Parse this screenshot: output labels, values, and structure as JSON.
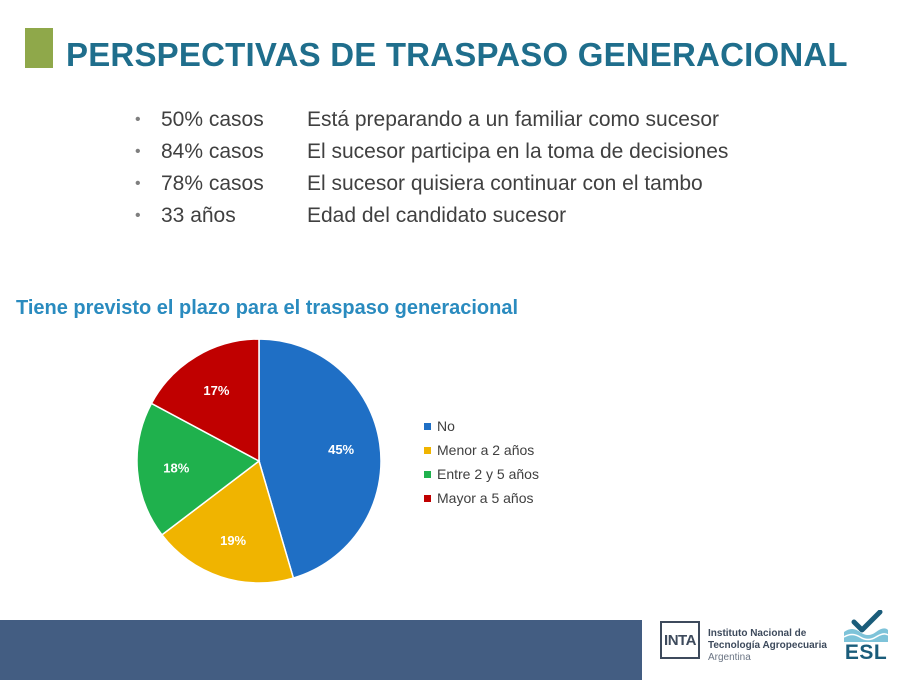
{
  "slide": {
    "title": "PERSPECTIVAS DE TRASPASO GENERACIONAL",
    "accent_color": "#8fa84a",
    "title_color": "#1f6e8c"
  },
  "bullets": [
    {
      "key": "50% casos",
      "text": "Está preparando a un familiar como sucesor"
    },
    {
      "key": "84% casos",
      "text": "El sucesor participa en la toma de decisiones"
    },
    {
      "key": "78% casos",
      "text": "El sucesor quisiera continuar con el tambo"
    },
    {
      "key": "33 años",
      "text": "Edad del candidato sucesor"
    }
  ],
  "chart_data": {
    "type": "pie",
    "title": "Tiene previsto el plazo para el traspaso generacional",
    "categories": [
      "No",
      "Menor a 2 años",
      "Entre 2 y 5 años",
      "Mayor a 5 años"
    ],
    "values": [
      45,
      19,
      18,
      17
    ],
    "data_labels": [
      "45%",
      "19%",
      "18%",
      "17%"
    ],
    "colors": [
      "#1f6fc5",
      "#f0b400",
      "#1fb14d",
      "#c00000"
    ],
    "legend_position": "right"
  },
  "footer": {
    "bar_color": "#435d82",
    "inta_logo": "INTA",
    "inta_line1": "Instituto Nacional de",
    "inta_line2": "Tecnología Agropecuaria",
    "inta_line3": "Argentina",
    "esl_logo": "ESL",
    "esl_icon": "checkmark-wave-icon"
  }
}
